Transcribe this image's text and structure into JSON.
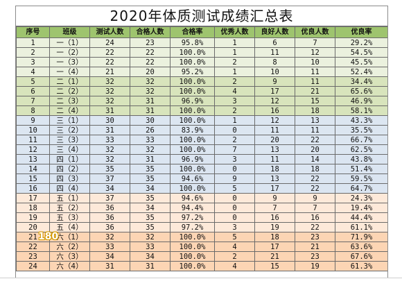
{
  "title": "2020年体质测试成绩汇总表",
  "headers": [
    "序号",
    "班级",
    "测试人数",
    "合格人数",
    "合格率",
    "优秀人数",
    "良好人数",
    "优良人数",
    "优良率"
  ],
  "rows": [
    [
      "1",
      "一（1）",
      "24",
      "23",
      "95.8%",
      "1",
      "6",
      "7",
      "29.2%"
    ],
    [
      "2",
      "一（2）",
      "22",
      "22",
      "100.0%",
      "1",
      "11",
      "12",
      "54.5%"
    ],
    [
      "3",
      "一（3）",
      "22",
      "22",
      "100.0%",
      "2",
      "8",
      "10",
      "45.5%"
    ],
    [
      "4",
      "一（4）",
      "21",
      "20",
      "95.2%",
      "1",
      "10",
      "11",
      "52.4%"
    ],
    [
      "5",
      "二（1）",
      "32",
      "32",
      "100.0%",
      "2",
      "9",
      "11",
      "34.4%"
    ],
    [
      "6",
      "二（2）",
      "32",
      "32",
      "100.0%",
      "4",
      "17",
      "21",
      "65.6%"
    ],
    [
      "7",
      "二（3）",
      "32",
      "31",
      "96.9%",
      "3",
      "12",
      "15",
      "46.9%"
    ],
    [
      "8",
      "二（4）",
      "31",
      "31",
      "100.0%",
      "2",
      "16",
      "18",
      "58.1%"
    ],
    [
      "9",
      "三（1）",
      "30",
      "30",
      "100.0%",
      "1",
      "12",
      "13",
      "43.3%"
    ],
    [
      "10",
      "三（2）",
      "31",
      "26",
      "83.9%",
      "0",
      "11",
      "11",
      "35.5%"
    ],
    [
      "11",
      "三（3）",
      "33",
      "33",
      "100.0%",
      "2",
      "20",
      "22",
      "66.7%"
    ],
    [
      "12",
      "三（4）",
      "32",
      "32",
      "100.0%",
      "7",
      "13",
      "20",
      "62.5%"
    ],
    [
      "13",
      "四（1）",
      "32",
      "31",
      "96.9%",
      "3",
      "11",
      "14",
      "43.8%"
    ],
    [
      "14",
      "四（2）",
      "35",
      "35",
      "100.0%",
      "0",
      "18",
      "18",
      "51.4%"
    ],
    [
      "15",
      "四（3）",
      "37",
      "35",
      "94.6%",
      "9",
      "13",
      "22",
      "59.5%"
    ],
    [
      "16",
      "四（4）",
      "34",
      "34",
      "100.0%",
      "5",
      "17",
      "22",
      "64.7%"
    ],
    [
      "17",
      "五（1）",
      "37",
      "35",
      "94.6%",
      "0",
      "9",
      "9",
      "24.3%"
    ],
    [
      "18",
      "五（2）",
      "36",
      "34",
      "94.4%",
      "0",
      "7",
      "7",
      "19.4%"
    ],
    [
      "19",
      "五（3）",
      "36",
      "35",
      "97.2%",
      "0",
      "16",
      "16",
      "44.4%"
    ],
    [
      "20",
      "五（4）",
      "36",
      "35",
      "97.2%",
      "3",
      "19",
      "22",
      "61.1%"
    ],
    [
      "21",
      "六（1）",
      "32",
      "32",
      "100.0%",
      "5",
      "18",
      "23",
      "71.9%"
    ],
    [
      "22",
      "六（2）",
      "33",
      "33",
      "100.0%",
      "4",
      "17",
      "21",
      "63.6%"
    ],
    [
      "23",
      "六（3）",
      "34",
      "34",
      "100.0%",
      "2",
      "21",
      "23",
      "67.6%"
    ],
    [
      "24",
      "六（4）",
      "31",
      "31",
      "100.0%",
      "4",
      "15",
      "19",
      "61.3%"
    ]
  ],
  "row_groups": [
    "g1",
    "g1",
    "g1",
    "g1",
    "g2",
    "g2",
    "g2",
    "g2",
    "g3",
    "g3",
    "g3",
    "g3",
    "g4",
    "g4",
    "g4",
    "g4",
    "g5",
    "g5",
    "g5",
    "g5",
    "g6",
    "g6",
    "g6",
    "g6"
  ],
  "badge": "180"
}
